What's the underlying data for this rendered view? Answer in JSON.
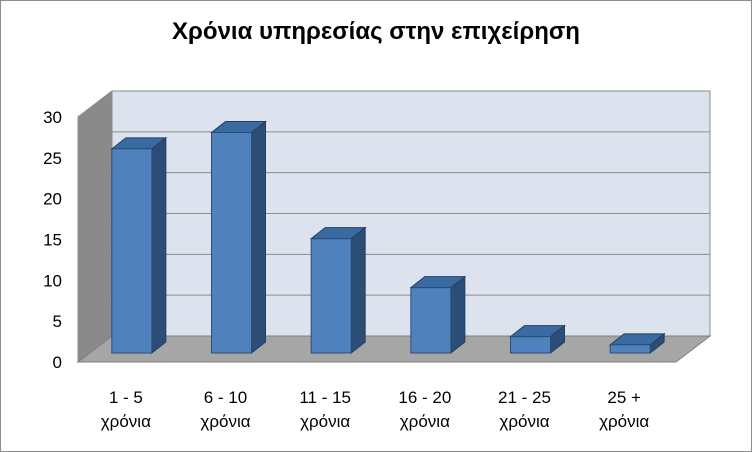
{
  "chart_data": {
    "type": "bar",
    "title": "Χρόνια υπηρεσίας στην επιχείρηση",
    "categories": [
      [
        "1 - 5",
        "χρόνια"
      ],
      [
        "6 - 10",
        "χρόνια"
      ],
      [
        "11 - 15",
        "χρόνια"
      ],
      [
        "16 - 20",
        "χρόνια"
      ],
      [
        "21 - 25",
        "χρόνια"
      ],
      [
        "25 +",
        "χρόνια"
      ]
    ],
    "values": [
      25,
      27,
      14,
      8,
      2,
      1
    ],
    "ylim": [
      0,
      30
    ],
    "yticks": [
      0,
      5,
      10,
      15,
      20,
      25,
      30
    ],
    "grid": true,
    "style": "3d-column",
    "colors": {
      "bar_front": "#4f81bd",
      "bar_side": "#2c4d75",
      "bar_top": "#3a6aa2",
      "wall": "#dde3ee",
      "side_wall": "#8a8a8a",
      "floor": "#a6a6a6",
      "grid": "#8c8c8c"
    }
  }
}
